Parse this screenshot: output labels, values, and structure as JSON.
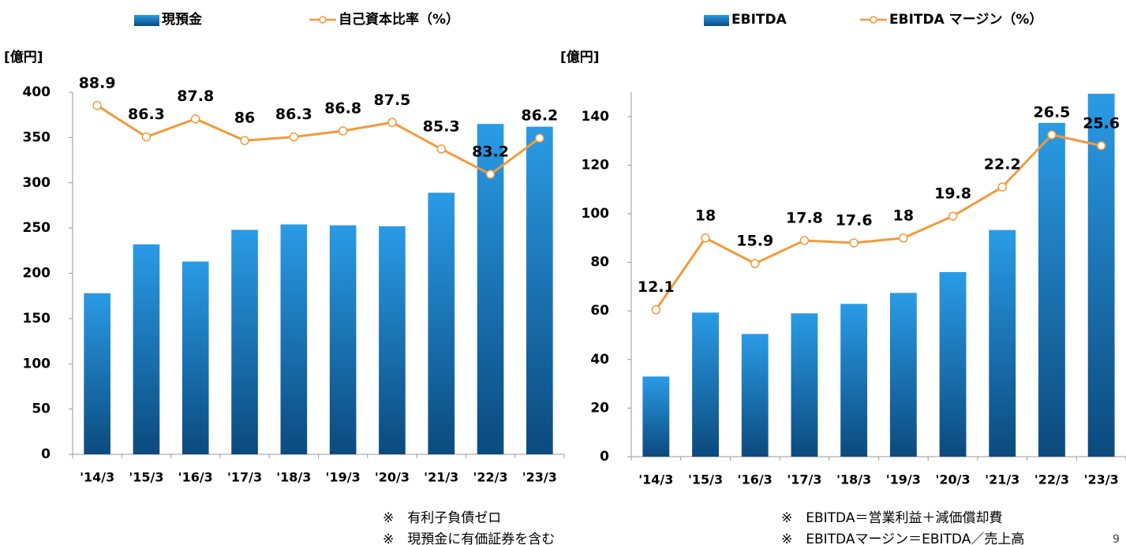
{
  "chart_data": [
    {
      "type": "bar",
      "y_axis_label": "[億円]",
      "categories": [
        "'14/3",
        "'15/3",
        "'16/3",
        "'17/3",
        "'18/3",
        "'19/3",
        "'20/3",
        "'21/3",
        "'22/3",
        "'23/3"
      ],
      "series": [
        {
          "name": "現預金",
          "color": "#2a9be6",
          "values": [
            178,
            232,
            213,
            248,
            254,
            253,
            252,
            289,
            365,
            362
          ]
        },
        {
          "name": "自己資本比率（%）",
          "type": "line",
          "axis": "y2",
          "color": "#f29a3a",
          "values": [
            88.9,
            86.3,
            87.8,
            86.0,
            86.3,
            86.8,
            87.5,
            85.3,
            83.2,
            86.2
          ]
        }
      ],
      "ylim": [
        0,
        400
      ],
      "yticks": [
        0,
        50,
        100,
        150,
        200,
        250,
        300,
        350,
        400
      ],
      "y2lim": [
        60,
        90
      ],
      "notes": [
        "※　有利子負債ゼロ",
        "※　現預金に有価証券を含む"
      ]
    },
    {
      "type": "bar",
      "y_axis_label": "[億円]",
      "categories": [
        "'14/3",
        "'15/3",
        "'16/3",
        "'17/3",
        "'18/3",
        "'19/3",
        "'20/3",
        "'21/3",
        "'22/3",
        "'23/3"
      ],
      "series": [
        {
          "name": "EBITDA",
          "color": "#2a9be6",
          "values": [
            33,
            59.3,
            50.5,
            59,
            62.9,
            67.4,
            76,
            93.3,
            137.4,
            149.4
          ]
        },
        {
          "name": "EBITDA マージン（%）",
          "type": "line",
          "axis": "y2",
          "color": "#f29a3a",
          "values": [
            12.1,
            18.0,
            15.9,
            17.8,
            17.6,
            18.0,
            19.8,
            22.2,
            26.5,
            25.6
          ]
        }
      ],
      "ylim": [
        0,
        150
      ],
      "yticks": [
        0,
        20,
        40,
        60,
        80,
        100,
        120,
        140
      ],
      "y2lim": [
        0,
        30
      ],
      "notes": [
        "※　EBITDA＝営業利益＋減価償却費",
        "※　EBITDAマージン＝EBITDA／売上高"
      ]
    }
  ],
  "page_number": "9"
}
